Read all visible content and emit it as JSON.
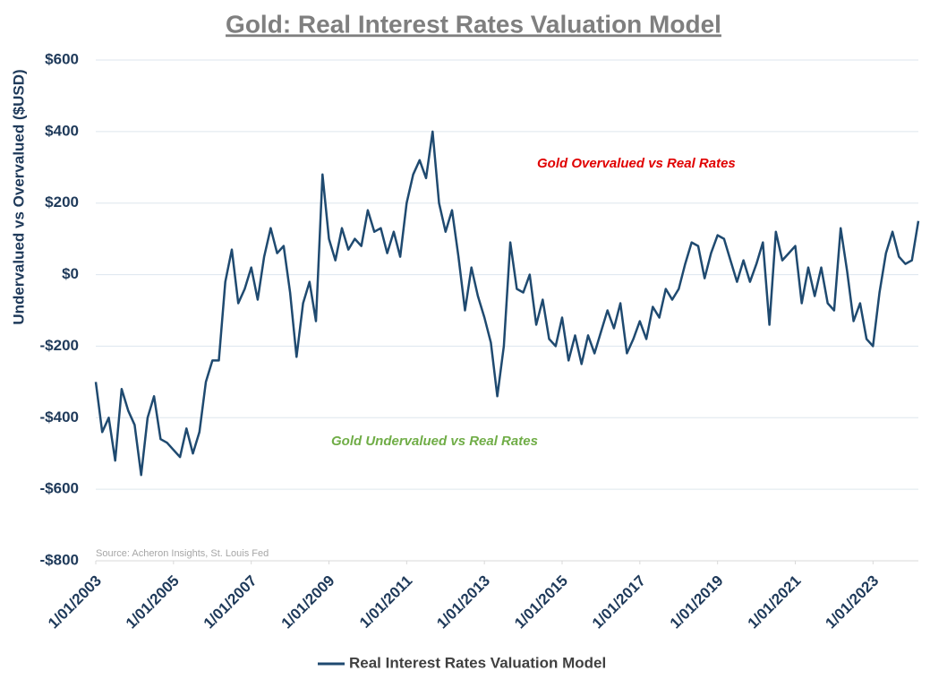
{
  "chart_data": {
    "type": "line",
    "title": "Gold: Real Interest Rates Valuation Model",
    "y_label": "Undervalued vs Overvalued ($USD)",
    "source": "Source: Acheron Insights, St. Louis Fed",
    "annotations": [
      {
        "text": "Gold Overvalued vs Real Rates",
        "color": "#e00000"
      },
      {
        "text": "Gold Undervalued vs Real Rates",
        "color": "#70ad47"
      }
    ],
    "legend": "bottom",
    "grid": true,
    "xlim": [
      "1/01/2003",
      "3/01/2024"
    ],
    "xticks": [
      "1/01/2003",
      "1/01/2005",
      "1/01/2007",
      "1/01/2009",
      "1/01/2011",
      "1/01/2013",
      "1/01/2015",
      "1/01/2017",
      "1/01/2019",
      "1/01/2021",
      "1/01/2023"
    ],
    "ylim": [
      -800,
      600
    ],
    "yticks": [
      {
        "value": -800,
        "label": "-$800"
      },
      {
        "value": -600,
        "label": "-$600"
      },
      {
        "value": -400,
        "label": "-$400"
      },
      {
        "value": -200,
        "label": "-$200"
      },
      {
        "value": 0,
        "label": "$0"
      },
      {
        "value": 200,
        "label": "$200"
      },
      {
        "value": 400,
        "label": "$400"
      },
      {
        "value": 600,
        "label": "$600"
      }
    ],
    "x": [
      "1/01/2003",
      "3/01/2003",
      "5/01/2003",
      "7/01/2003",
      "9/01/2003",
      "11/01/2003",
      "1/01/2004",
      "3/01/2004",
      "5/01/2004",
      "7/01/2004",
      "9/01/2004",
      "11/01/2004",
      "1/01/2005",
      "3/01/2005",
      "5/01/2005",
      "7/01/2005",
      "9/01/2005",
      "11/01/2005",
      "1/01/2006",
      "3/01/2006",
      "5/01/2006",
      "7/01/2006",
      "9/01/2006",
      "11/01/2006",
      "1/01/2007",
      "3/01/2007",
      "5/01/2007",
      "7/01/2007",
      "9/01/2007",
      "11/01/2007",
      "1/01/2008",
      "3/01/2008",
      "5/01/2008",
      "7/01/2008",
      "9/01/2008",
      "11/01/2008",
      "1/01/2009",
      "3/01/2009",
      "5/01/2009",
      "7/01/2009",
      "9/01/2009",
      "11/01/2009",
      "1/01/2010",
      "3/01/2010",
      "5/01/2010",
      "7/01/2010",
      "9/01/2010",
      "11/01/2010",
      "1/01/2011",
      "3/01/2011",
      "5/01/2011",
      "7/01/2011",
      "9/01/2011",
      "11/01/2011",
      "1/01/2012",
      "3/01/2012",
      "5/01/2012",
      "7/01/2012",
      "9/01/2012",
      "11/01/2012",
      "1/01/2013",
      "3/01/2013",
      "5/01/2013",
      "7/01/2013",
      "9/01/2013",
      "11/01/2013",
      "1/01/2014",
      "3/01/2014",
      "5/01/2014",
      "7/01/2014",
      "9/01/2014",
      "11/01/2014",
      "1/01/2015",
      "3/01/2015",
      "5/01/2015",
      "7/01/2015",
      "9/01/2015",
      "11/01/2015",
      "1/01/2016",
      "3/01/2016",
      "5/01/2016",
      "7/01/2016",
      "9/01/2016",
      "11/01/2016",
      "1/01/2017",
      "3/01/2017",
      "5/01/2017",
      "7/01/2017",
      "9/01/2017",
      "11/01/2017",
      "1/01/2018",
      "3/01/2018",
      "5/01/2018",
      "7/01/2018",
      "9/01/2018",
      "11/01/2018",
      "1/01/2019",
      "3/01/2019",
      "5/01/2019",
      "7/01/2019",
      "9/01/2019",
      "11/01/2019",
      "1/01/2020",
      "3/01/2020",
      "5/01/2020",
      "7/01/2020",
      "9/01/2020",
      "11/01/2020",
      "1/01/2021",
      "3/01/2021",
      "5/01/2021",
      "7/01/2021",
      "9/01/2021",
      "11/01/2021",
      "1/01/2022",
      "3/01/2022",
      "5/01/2022",
      "7/01/2022",
      "9/01/2022",
      "11/01/2022",
      "1/01/2023",
      "3/01/2023",
      "5/01/2023",
      "7/01/2023",
      "9/01/2023",
      "11/01/2023",
      "1/01/2024",
      "3/01/2024"
    ],
    "series": [
      {
        "name": "Real Interest Rates Valuation Model",
        "color": "#1f4a70",
        "values": [
          -300,
          -440,
          -400,
          -520,
          -320,
          -380,
          -420,
          -560,
          -400,
          -340,
          -460,
          -470,
          -490,
          -510,
          -430,
          -500,
          -440,
          -300,
          -240,
          -240,
          -20,
          70,
          -80,
          -40,
          20,
          -70,
          50,
          130,
          60,
          80,
          -50,
          -230,
          -80,
          -20,
          -130,
          280,
          100,
          40,
          130,
          70,
          100,
          80,
          180,
          120,
          130,
          60,
          120,
          50,
          200,
          280,
          320,
          270,
          400,
          200,
          120,
          180,
          50,
          -100,
          20,
          -60,
          -120,
          -190,
          -340,
          -200,
          90,
          -40,
          -50,
          0,
          -140,
          -70,
          -180,
          -200,
          -120,
          -240,
          -170,
          -250,
          -170,
          -220,
          -160,
          -100,
          -150,
          -80,
          -220,
          -180,
          -130,
          -180,
          -90,
          -120,
          -40,
          -70,
          -40,
          30,
          90,
          80,
          -10,
          60,
          110,
          100,
          40,
          -20,
          40,
          -20,
          30,
          90,
          -140,
          120,
          40,
          60,
          80,
          -80,
          20,
          -60,
          20,
          -80,
          -100,
          130,
          10,
          -130,
          -80,
          -180,
          -200,
          -50,
          60,
          120,
          50,
          30,
          40,
          150
        ]
      }
    ]
  }
}
